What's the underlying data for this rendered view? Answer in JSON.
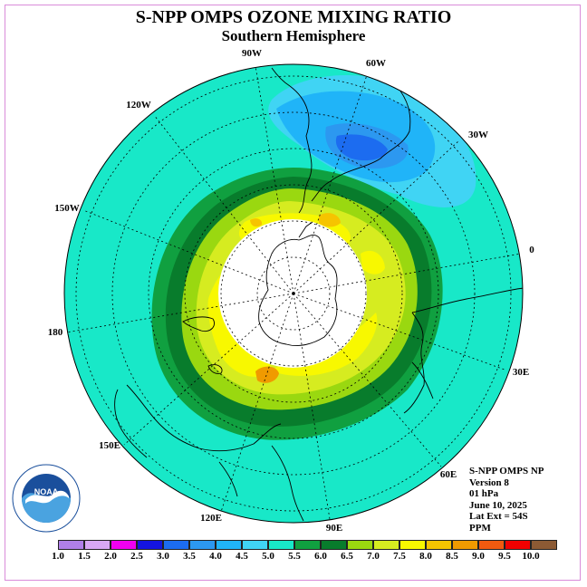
{
  "title": "S-NPP OMPS OZONE MIXING RATIO",
  "subtitle": "Southern Hemisphere",
  "longitude_labels": [
    "90W",
    "60W",
    "120W",
    "30W",
    "150W",
    "0",
    "180",
    "30E",
    "150E",
    "60E",
    "120E",
    "90E"
  ],
  "info": {
    "instrument": "S-NPP OMPS NP",
    "version": "Version 8",
    "pressure": "01 hPa",
    "date": "June 10, 2025",
    "lat_ext": "Lat Ext = 54S",
    "units": "PPM"
  },
  "logo_text": "NOAA",
  "logo_ring_text": "NATIONAL OCEANIC AND ATMOSPHERIC ADMINISTRATION · U.S. DEPARTMENT OF COMMERCE",
  "color_scale": {
    "labels": [
      "1.0",
      "1.5",
      "2.0",
      "2.5",
      "3.0",
      "3.5",
      "4.0",
      "4.5",
      "5.0",
      "5.5",
      "6.0",
      "6.5",
      "7.0",
      "7.5",
      "8.0",
      "8.5",
      "9.0",
      "9.5",
      "10.0"
    ],
    "colors": [
      "#b07fe8",
      "#d8a8f4",
      "#f000f0",
      "#1414e0",
      "#1c6cf0",
      "#2c98f0",
      "#20b4f8",
      "#40d4f4",
      "#18e8c8",
      "#10a040",
      "#087c2c",
      "#9ad810",
      "#d6ec20",
      "#f8f800",
      "#f6c400",
      "#f09a00",
      "#f05a10",
      "#f00000",
      "#8c5a34"
    ]
  }
}
